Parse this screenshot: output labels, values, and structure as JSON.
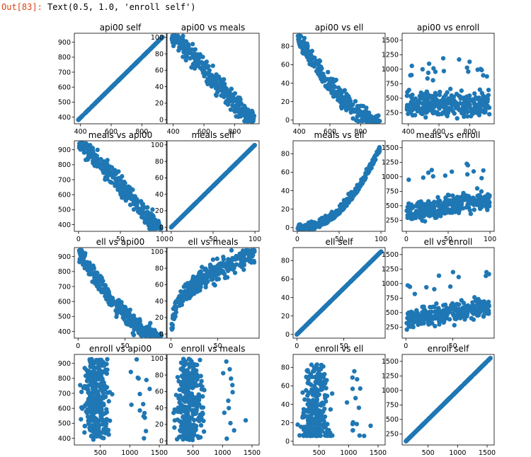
{
  "cell": {
    "prompt": "Out[83]:",
    "output_text": "Text(0.5, 1.0, 'enroll self')"
  },
  "colors": {
    "marker": "#1f77b4",
    "axes": "#000000",
    "text": "#000000"
  },
  "chart_data": [
    {
      "type": "scatter",
      "title": "api00 self",
      "xlim": [
        360,
        960
      ],
      "ylim": [
        355,
        960
      ],
      "xticks": [
        400,
        600,
        800
      ],
      "yticks": [
        400,
        500,
        600,
        700,
        800,
        900
      ],
      "pattern": "identity"
    },
    {
      "type": "scatter",
      "title": "api00 vs meals",
      "xlim": [
        360,
        960
      ],
      "ylim": [
        -5,
        105
      ],
      "xticks": [
        400,
        600,
        800
      ],
      "yticks": [
        0,
        20,
        40,
        60,
        80,
        100
      ],
      "pattern": "negative"
    },
    {
      "type": "scatter",
      "title": "api00 vs ell",
      "xlim": [
        360,
        960
      ],
      "ylim": [
        -4,
        94
      ],
      "xticks": [
        400,
        600,
        800
      ],
      "yticks": [
        0,
        20,
        40,
        60,
        80
      ],
      "pattern": "negative-decay"
    },
    {
      "type": "scatter",
      "title": "api00 vs enroll",
      "xlim": [
        360,
        960
      ],
      "ylim": [
        60,
        1620
      ],
      "xticks": [
        400,
        600,
        800
      ],
      "yticks": [
        250,
        500,
        750,
        1000,
        1250,
        1500
      ],
      "pattern": "cloud-bottom"
    },
    {
      "type": "scatter",
      "title": "meals vs api00",
      "xlim": [
        -5,
        105
      ],
      "ylim": [
        355,
        960
      ],
      "xticks": [
        0,
        50,
        100
      ],
      "yticks": [
        400,
        500,
        600,
        700,
        800,
        900
      ],
      "pattern": "negative"
    },
    {
      "type": "scatter",
      "title": "meals self",
      "xlim": [
        -5,
        105
      ],
      "ylim": [
        -5,
        105
      ],
      "xticks": [
        0,
        50,
        100
      ],
      "yticks": [
        0,
        20,
        40,
        60,
        80,
        100
      ],
      "pattern": "identity"
    },
    {
      "type": "scatter",
      "title": "meals vs ell",
      "xlim": [
        -5,
        105
      ],
      "ylim": [
        -4,
        94
      ],
      "xticks": [
        0,
        50,
        100
      ],
      "yticks": [
        0,
        20,
        40,
        60,
        80
      ],
      "pattern": "positive-curve"
    },
    {
      "type": "scatter",
      "title": "meals vs enroll",
      "xlim": [
        -5,
        105
      ],
      "ylim": [
        60,
        1620
      ],
      "xticks": [
        0,
        50,
        100
      ],
      "yticks": [
        250,
        500,
        750,
        1000,
        1250,
        1500
      ],
      "pattern": "cloud-rising"
    },
    {
      "type": "scatter",
      "title": "ell vs api00",
      "xlim": [
        -4,
        94
      ],
      "ylim": [
        355,
        960
      ],
      "xticks": [
        0,
        50
      ],
      "yticks": [
        400,
        500,
        600,
        700,
        800,
        900
      ],
      "pattern": "negative-decay"
    },
    {
      "type": "scatter",
      "title": "ell vs meals",
      "xlim": [
        -4,
        94
      ],
      "ylim": [
        -5,
        105
      ],
      "xticks": [
        0,
        50
      ],
      "yticks": [
        0,
        20,
        40,
        60,
        80,
        100
      ],
      "pattern": "concave"
    },
    {
      "type": "scatter",
      "title": "ell self",
      "xlim": [
        -4,
        94
      ],
      "ylim": [
        -4,
        94
      ],
      "xticks": [
        0,
        50
      ],
      "yticks": [
        0,
        20,
        40,
        60,
        80
      ],
      "pattern": "identity"
    },
    {
      "type": "scatter",
      "title": "ell vs enroll",
      "xlim": [
        -4,
        94
      ],
      "ylim": [
        60,
        1620
      ],
      "xticks": [
        0,
        50
      ],
      "yticks": [
        250,
        500,
        750,
        1000,
        1250,
        1500
      ],
      "pattern": "cloud-rising"
    },
    {
      "type": "scatter",
      "title": "enroll vs api00",
      "xlim": [
        60,
        1620
      ],
      "ylim": [
        355,
        960
      ],
      "xticks": [
        500,
        1000,
        1500
      ],
      "yticks": [
        400,
        500,
        600,
        700,
        800,
        900
      ],
      "pattern": "cloud-left"
    },
    {
      "type": "scatter",
      "title": "enroll vs meals",
      "xlim": [
        60,
        1620
      ],
      "ylim": [
        -5,
        105
      ],
      "xticks": [
        500,
        1000,
        1500
      ],
      "yticks": [
        0,
        20,
        40,
        60,
        80,
        100
      ],
      "pattern": "cloud-left"
    },
    {
      "type": "scatter",
      "title": "enroll vs ell",
      "xlim": [
        60,
        1620
      ],
      "ylim": [
        -4,
        94
      ],
      "xticks": [
        500,
        1000,
        1500
      ],
      "yticks": [
        0,
        20,
        40,
        60,
        80
      ],
      "pattern": "cloud-left-rising"
    },
    {
      "type": "scatter",
      "title": "enroll self",
      "xlim": [
        60,
        1620
      ],
      "ylim": [
        60,
        1620
      ],
      "xticks": [
        500,
        1000,
        1500
      ],
      "yticks": [
        250,
        500,
        750,
        1000,
        1250,
        1500
      ],
      "pattern": "identity"
    }
  ]
}
